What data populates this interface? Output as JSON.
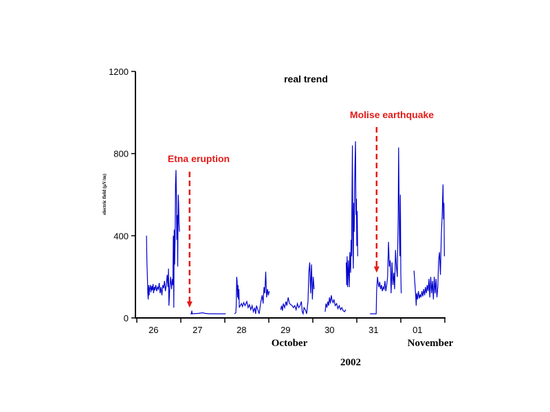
{
  "chart_data": {
    "type": "line",
    "title": "real trend",
    "ylabel": "electric field (μV/m)",
    "xlabel_month_left": "October",
    "xlabel_month_right": "November",
    "xlabel_year": "2002",
    "ylim": [
      0,
      1200
    ],
    "yticks": [
      0,
      400,
      800,
      1200
    ],
    "xlim_days": [
      0,
      7
    ],
    "xtick_labels": [
      "26",
      "27",
      "28",
      "29",
      "30",
      "31",
      "01"
    ],
    "grid": false,
    "series_color": "#0000cc",
    "annotation_color": "#e41b17",
    "annotations": [
      {
        "label": "Etna eruption",
        "x_day": 1.2,
        "arrow_to_value": 50
      },
      {
        "label": "Molise earthquake",
        "x_day": 5.45,
        "arrow_to_value": 220
      }
    ],
    "segments": [
      [
        [
          0.22,
          400
        ],
        [
          0.225,
          330
        ],
        [
          0.23,
          270
        ],
        [
          0.24,
          200
        ],
        [
          0.25,
          120
        ],
        [
          0.26,
          90
        ],
        [
          0.27,
          160
        ],
        [
          0.28,
          110
        ],
        [
          0.29,
          140
        ],
        [
          0.31,
          160
        ],
        [
          0.32,
          125
        ],
        [
          0.34,
          155
        ],
        [
          0.35,
          135
        ],
        [
          0.37,
          165
        ],
        [
          0.38,
          120
        ],
        [
          0.4,
          150
        ],
        [
          0.41,
          135
        ],
        [
          0.43,
          160
        ],
        [
          0.45,
          130
        ],
        [
          0.47,
          150
        ],
        [
          0.49,
          140
        ],
        [
          0.51,
          170
        ],
        [
          0.53,
          120
        ],
        [
          0.55,
          150
        ],
        [
          0.57,
          110
        ],
        [
          0.59,
          160
        ],
        [
          0.61,
          145
        ],
        [
          0.63,
          180
        ],
        [
          0.65,
          130
        ],
        [
          0.67,
          160
        ],
        [
          0.69,
          210
        ],
        [
          0.71,
          150
        ],
        [
          0.72,
          240
        ],
        [
          0.73,
          60
        ],
        [
          0.75,
          150
        ],
        [
          0.77,
          200
        ],
        [
          0.79,
          140
        ],
        [
          0.81,
          190
        ],
        [
          0.82,
          160
        ],
        [
          0.83,
          400
        ],
        [
          0.84,
          50
        ],
        [
          0.85,
          430
        ],
        [
          0.86,
          260
        ],
        [
          0.87,
          380
        ],
        [
          0.88,
          650
        ],
        [
          0.89,
          720
        ],
        [
          0.9,
          580
        ],
        [
          0.91,
          380
        ],
        [
          0.92,
          500
        ],
        [
          0.93,
          250
        ],
        [
          0.94,
          600
        ],
        [
          0.95,
          560
        ],
        [
          0.96,
          460
        ],
        [
          0.97,
          420
        ]
      ],
      [
        [
          1.22,
          20
        ],
        [
          1.24,
          20
        ],
        [
          1.25,
          35
        ],
        [
          1.26,
          20
        ],
        [
          1.4,
          22
        ],
        [
          1.5,
          25
        ],
        [
          1.55,
          22
        ],
        [
          1.65,
          20
        ],
        [
          1.8,
          20
        ],
        [
          2.02,
          20
        ]
      ],
      [
        [
          2.22,
          20
        ],
        [
          2.25,
          25
        ],
        [
          2.26,
          60
        ],
        [
          2.27,
          200
        ],
        [
          2.28,
          180
        ],
        [
          2.29,
          100
        ],
        [
          2.3,
          160
        ],
        [
          2.31,
          90
        ],
        [
          2.32,
          140
        ],
        [
          2.33,
          50
        ],
        [
          2.35,
          60
        ],
        [
          2.38,
          70
        ],
        [
          2.4,
          55
        ],
        [
          2.43,
          75
        ],
        [
          2.46,
          60
        ],
        [
          2.5,
          80
        ],
        [
          2.53,
          50
        ],
        [
          2.56,
          65
        ],
        [
          2.59,
          40
        ],
        [
          2.62,
          60
        ],
        [
          2.65,
          30
        ],
        [
          2.68,
          50
        ],
        [
          2.7,
          20
        ],
        [
          2.72,
          60
        ],
        [
          2.75,
          40
        ],
        [
          2.78,
          20
        ],
        [
          2.82,
          80
        ],
        [
          2.85,
          110
        ],
        [
          2.87,
          70
        ],
        [
          2.89,
          150
        ],
        [
          2.91,
          120
        ],
        [
          2.93,
          225
        ],
        [
          2.95,
          100
        ],
        [
          2.97,
          140
        ],
        [
          2.99,
          110
        ],
        [
          3.01,
          130
        ]
      ],
      [
        [
          3.27,
          40
        ],
        [
          3.29,
          60
        ],
        [
          3.31,
          35
        ],
        [
          3.33,
          70
        ],
        [
          3.36,
          50
        ],
        [
          3.39,
          80
        ],
        [
          3.41,
          60
        ],
        [
          3.44,
          100
        ],
        [
          3.47,
          70
        ],
        [
          3.5,
          65
        ],
        [
          3.53,
          60
        ],
        [
          3.56,
          50
        ],
        [
          3.59,
          60
        ],
        [
          3.62,
          40
        ],
        [
          3.65,
          70
        ],
        [
          3.68,
          50
        ],
        [
          3.71,
          60
        ],
        [
          3.74,
          80
        ],
        [
          3.76,
          30
        ],
        [
          3.78,
          20
        ],
        [
          3.8,
          50
        ],
        [
          3.83,
          40
        ],
        [
          3.86,
          20
        ],
        [
          3.89,
          80
        ],
        [
          3.91,
          220
        ],
        [
          3.93,
          270
        ],
        [
          3.95,
          120
        ],
        [
          3.97,
          260
        ],
        [
          3.99,
          90
        ],
        [
          4.01,
          200
        ],
        [
          4.03,
          140
        ]
      ],
      [
        [
          4.28,
          30
        ],
        [
          4.3,
          70
        ],
        [
          4.32,
          50
        ],
        [
          4.34,
          80
        ],
        [
          4.36,
          60
        ],
        [
          4.38,
          100
        ],
        [
          4.4,
          70
        ],
        [
          4.42,
          110
        ],
        [
          4.44,
          85
        ],
        [
          4.46,
          75
        ],
        [
          4.48,
          90
        ],
        [
          4.51,
          60
        ],
        [
          4.54,
          70
        ],
        [
          4.57,
          45
        ],
        [
          4.6,
          60
        ],
        [
          4.63,
          40
        ],
        [
          4.66,
          50
        ],
        [
          4.69,
          35
        ],
        [
          4.72,
          30
        ],
        [
          4.75,
          40
        ]
      ],
      [
        [
          4.76,
          270
        ],
        [
          4.77,
          160
        ],
        [
          4.78,
          300
        ],
        [
          4.79,
          150
        ],
        [
          4.8,
          220
        ],
        [
          4.81,
          280
        ],
        [
          4.82,
          200
        ],
        [
          4.83,
          150
        ],
        [
          4.84,
          320
        ],
        [
          4.86,
          220
        ],
        [
          4.87,
          380
        ],
        [
          4.88,
          300
        ],
        [
          4.89,
          600
        ],
        [
          4.9,
          840
        ],
        [
          4.91,
          340
        ],
        [
          4.92,
          240
        ],
        [
          4.93,
          560
        ],
        [
          4.94,
          420
        ],
        [
          4.95,
          660
        ],
        [
          4.96,
          760
        ],
        [
          4.97,
          860
        ],
        [
          4.98,
          500
        ],
        [
          4.99,
          580
        ],
        [
          5.0,
          350
        ],
        [
          5.01,
          520
        ],
        [
          5.02,
          300
        ]
      ],
      [
        [
          5.3,
          20
        ],
        [
          5.36,
          20
        ],
        [
          5.44,
          20
        ],
        [
          5.45,
          130
        ],
        [
          5.47,
          200
        ],
        [
          5.48,
          180
        ],
        [
          5.5,
          150
        ],
        [
          5.52,
          175
        ],
        [
          5.54,
          140
        ],
        [
          5.56,
          160
        ],
        [
          5.58,
          130
        ],
        [
          5.6,
          150
        ],
        [
          5.62,
          140
        ],
        [
          5.64,
          180
        ],
        [
          5.66,
          130
        ],
        [
          5.68,
          160
        ],
        [
          5.7,
          200
        ],
        [
          5.72,
          370
        ],
        [
          5.74,
          250
        ],
        [
          5.76,
          280
        ],
        [
          5.78,
          120
        ],
        [
          5.8,
          270
        ],
        [
          5.82,
          160
        ],
        [
          5.84,
          220
        ],
        [
          5.86,
          140
        ],
        [
          5.88,
          330
        ],
        [
          5.9,
          250
        ],
        [
          5.92,
          200
        ],
        [
          5.94,
          500
        ],
        [
          5.95,
          830
        ],
        [
          5.96,
          600
        ],
        [
          5.97,
          400
        ],
        [
          5.98,
          300
        ],
        [
          5.99,
          600
        ],
        [
          6.0,
          220
        ],
        [
          6.01,
          120
        ]
      ],
      [
        [
          6.3,
          230
        ],
        [
          6.31,
          200
        ],
        [
          6.34,
          100
        ],
        [
          6.35,
          60
        ],
        [
          6.36,
          120
        ],
        [
          6.38,
          90
        ],
        [
          6.4,
          130
        ],
        [
          6.42,
          95
        ],
        [
          6.44,
          115
        ],
        [
          6.46,
          100
        ],
        [
          6.48,
          130
        ],
        [
          6.5,
          105
        ],
        [
          6.52,
          140
        ],
        [
          6.54,
          110
        ],
        [
          6.56,
          150
        ],
        [
          6.58,
          120
        ],
        [
          6.6,
          160
        ],
        [
          6.62,
          130
        ],
        [
          6.64,
          190
        ],
        [
          6.66,
          100
        ],
        [
          6.68,
          200
        ],
        [
          6.7,
          120
        ],
        [
          6.72,
          180
        ],
        [
          6.74,
          90
        ],
        [
          6.76,
          200
        ],
        [
          6.78,
          120
        ],
        [
          6.8,
          190
        ],
        [
          6.82,
          100
        ],
        [
          6.84,
          150
        ],
        [
          6.86,
          280
        ],
        [
          6.88,
          320
        ],
        [
          6.9,
          210
        ],
        [
          6.92,
          400
        ],
        [
          6.94,
          500
        ],
        [
          6.95,
          580
        ],
        [
          6.96,
          650
        ],
        [
          6.97,
          480
        ],
        [
          6.98,
          560
        ],
        [
          6.99,
          300
        ]
      ]
    ]
  }
}
